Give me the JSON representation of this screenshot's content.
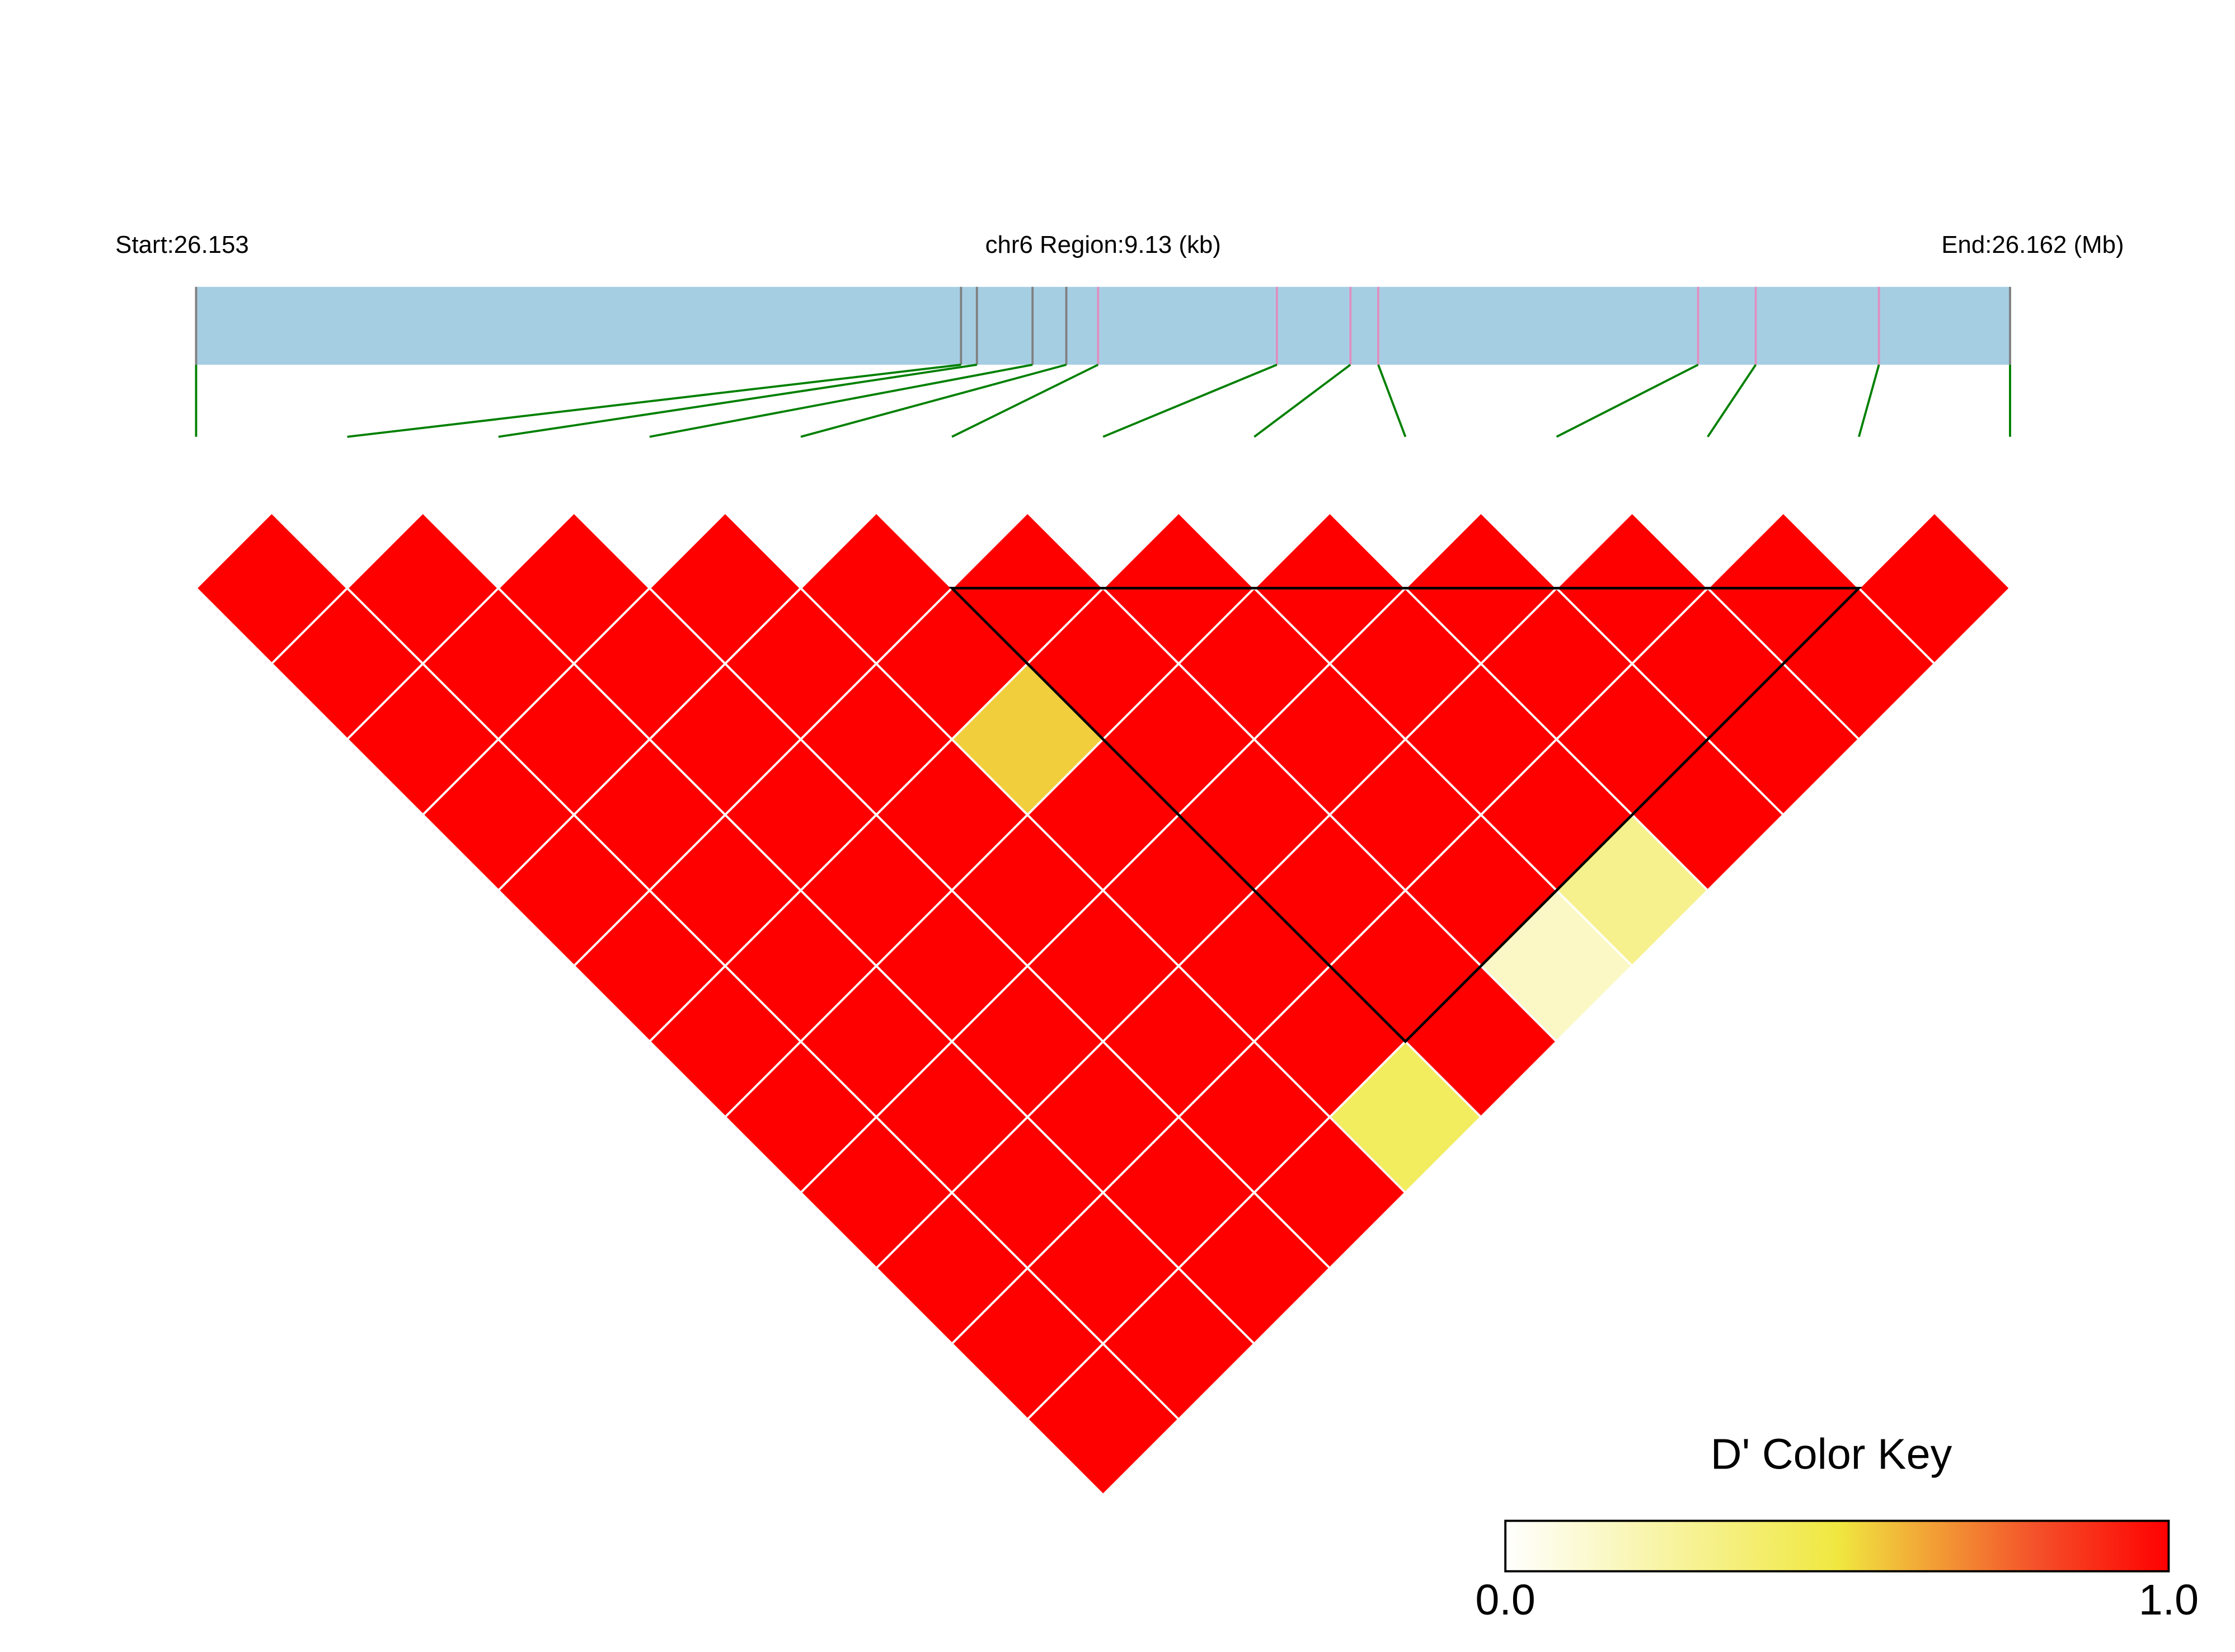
{
  "chart_data": {
    "type": "ld_heatmap",
    "start_label": "Start:26.153",
    "chromosome_label": "chr6 Region:9.13 (kb)",
    "end_label": "End:26.162 (Mb)",
    "xlim": [
      0,
      9.13
    ],
    "snp_positions": [
      0,
      3.85,
      3.93,
      4.21,
      4.38,
      4.54,
      5.44,
      5.81,
      5.95,
      7.56,
      7.85,
      8.47,
      9.13
    ],
    "snp_colors": [
      "#808080",
      "#808080",
      "#808080",
      "#808080",
      "#808080",
      "#e08fc0",
      "#e08fc0",
      "#e08fc0",
      "#e08fc0",
      "#e08fc0",
      "#e08fc0",
      "#e08fc0",
      "#808080"
    ],
    "bar_color": "#a6cee3",
    "link_color": "#008000",
    "values": [
      [
        1,
        1,
        1,
        1,
        1,
        1,
        1,
        1,
        1,
        1,
        1,
        1
      ],
      [
        1,
        1,
        1,
        1,
        1,
        1,
        1,
        1,
        1,
        1,
        1
      ],
      [
        1,
        1,
        1,
        1,
        1,
        1,
        1,
        1,
        1,
        1
      ],
      [
        1,
        1,
        1,
        1,
        1,
        1,
        1,
        1,
        1
      ],
      [
        1,
        1,
        0.55,
        1,
        1,
        1,
        1,
        0.42
      ],
      [
        1,
        1,
        1,
        1,
        1,
        1,
        1
      ],
      [
        1,
        1,
        1,
        1,
        1,
        0.15
      ],
      [
        1,
        1,
        1,
        1,
        0.3
      ],
      [
        1,
        1,
        1,
        1
      ],
      [
        1,
        1,
        1
      ],
      [
        1,
        1
      ],
      [
        1
      ]
    ],
    "blocks": [
      {
        "start": 5,
        "end": 11
      }
    ],
    "color_key": {
      "title": "D' Color Key",
      "stops": [
        {
          "value": 0,
          "color": "#ffffff"
        },
        {
          "value": 0.5,
          "color": "#f0e840"
        },
        {
          "value": 0.8,
          "color": "#f4512a"
        },
        {
          "value": 1,
          "color": "#ff0000"
        }
      ],
      "ticks": [
        {
          "value": 0,
          "label": "0.0"
        },
        {
          "value": 1,
          "label": "1.0"
        }
      ]
    }
  }
}
